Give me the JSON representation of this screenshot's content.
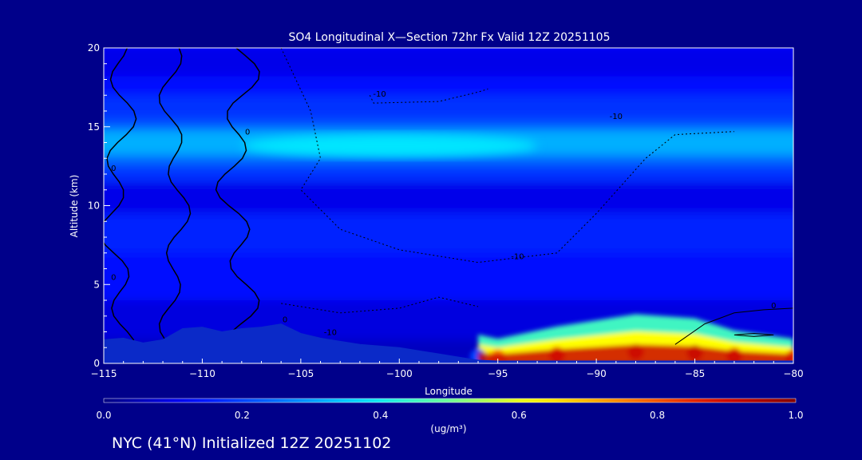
{
  "chart_data": {
    "type": "heatmap",
    "title": "SO4 Longitudinal X—Section 72hr  Fx Valid 12Z 20251105",
    "xlabel": "Longitude",
    "ylabel": "Altitude (km)",
    "xlim": [
      -115,
      -80
    ],
    "ylim": [
      0,
      20
    ],
    "x_ticks": [
      -115,
      -110,
      -105,
      -100,
      -95,
      -90,
      -85,
      -80
    ],
    "x_tick_labels": [
      "−115",
      "−110",
      "−105",
      "−100",
      "−95",
      "−90",
      "−85",
      "−80"
    ],
    "y_ticks": [
      0,
      5,
      10,
      15,
      20
    ],
    "y_tick_labels": [
      "0",
      "5",
      "10",
      "15",
      "20"
    ],
    "colorbar": {
      "min": 0.0,
      "max": 1.0,
      "ticks": [
        0.0,
        0.2,
        0.4,
        0.6,
        0.8,
        1.0
      ],
      "tick_labels": [
        "0.0",
        "0.2",
        "0.4",
        "0.6",
        "0.8",
        "1.0"
      ],
      "unit_label": "(ug/m³)"
    },
    "background_concentration": 0.12,
    "bands": [
      {
        "alt_min": 0.0,
        "alt_max": 1.5,
        "value": 0.06
      },
      {
        "alt_min": 1.5,
        "alt_max": 4.0,
        "value": 0.09
      },
      {
        "alt_min": 4.0,
        "alt_max": 7.0,
        "value": 0.14
      },
      {
        "alt_min": 7.0,
        "alt_max": 9.5,
        "value": 0.16
      },
      {
        "alt_min": 9.5,
        "alt_max": 11.5,
        "value": 0.1
      },
      {
        "alt_min": 11.5,
        "alt_max": 12.5,
        "value": 0.18
      },
      {
        "alt_min": 12.5,
        "alt_max": 13.2,
        "value": 0.24
      },
      {
        "alt_min": 13.2,
        "alt_max": 14.8,
        "value": 0.32
      },
      {
        "alt_min": 14.8,
        "alt_max": 15.5,
        "value": 0.22
      },
      {
        "alt_min": 15.5,
        "alt_max": 17.0,
        "value": 0.18
      },
      {
        "alt_min": 17.0,
        "alt_max": 18.2,
        "value": 0.14
      },
      {
        "alt_min": 18.2,
        "alt_max": 20.0,
        "value": 0.1
      }
    ],
    "layer_maximum": {
      "lon_min": -108,
      "lon_max": -93,
      "alt": 13.8,
      "value": 0.38
    },
    "surface_plume": [
      {
        "lon": -96,
        "alt": 0.7,
        "value": 0.2
      },
      {
        "lon": -95,
        "alt": 0.6,
        "value": 0.78
      },
      {
        "lon": -92,
        "alt": 0.9,
        "value": 0.85
      },
      {
        "lon": -88,
        "alt": 1.2,
        "value": 0.9
      },
      {
        "lon": -85,
        "alt": 1.1,
        "value": 0.92
      },
      {
        "lon": -83,
        "alt": 0.8,
        "value": 0.88
      },
      {
        "lon": -80,
        "alt": 0.6,
        "value": 0.82
      }
    ],
    "terrain": [
      [
        -115,
        1.5
      ],
      [
        -114,
        1.6
      ],
      [
        -113,
        1.3
      ],
      [
        -112,
        1.5
      ],
      [
        -111,
        2.2
      ],
      [
        -110,
        2.3
      ],
      [
        -109,
        2.0
      ],
      [
        -108,
        2.2
      ],
      [
        -107,
        2.3
      ],
      [
        -106,
        2.5
      ],
      [
        -105,
        1.9
      ],
      [
        -104,
        1.6
      ],
      [
        -103,
        1.4
      ],
      [
        -102,
        1.2
      ],
      [
        -101,
        1.1
      ],
      [
        -100,
        1.0
      ],
      [
        -99,
        0.8
      ],
      [
        -98,
        0.6
      ],
      [
        -97,
        0.4
      ],
      [
        -96,
        0.2
      ],
      [
        -95,
        0.15
      ],
      [
        -80,
        0.15
      ]
    ],
    "contour_labels": [
      {
        "text": "-10",
        "lon": -101,
        "alt": 16.9
      },
      {
        "text": "-10",
        "lon": -89,
        "alt": 15.5
      },
      {
        "text": "-10",
        "lon": -94,
        "alt": 6.6
      },
      {
        "text": "-10",
        "lon": -103.5,
        "alt": 1.8
      },
      {
        "text": "0",
        "lon": -107.7,
        "alt": 14.5
      },
      {
        "text": "0",
        "lon": -114.5,
        "alt": 12.2
      },
      {
        "text": "0",
        "lon": -114.5,
        "alt": 5.3
      },
      {
        "text": "0",
        "lon": -105.8,
        "alt": 2.6
      },
      {
        "text": "0",
        "lon": -81,
        "alt": 3.5
      }
    ]
  },
  "footer": {
    "text": "NYC (41°N) Initialized 12Z 20251102"
  }
}
